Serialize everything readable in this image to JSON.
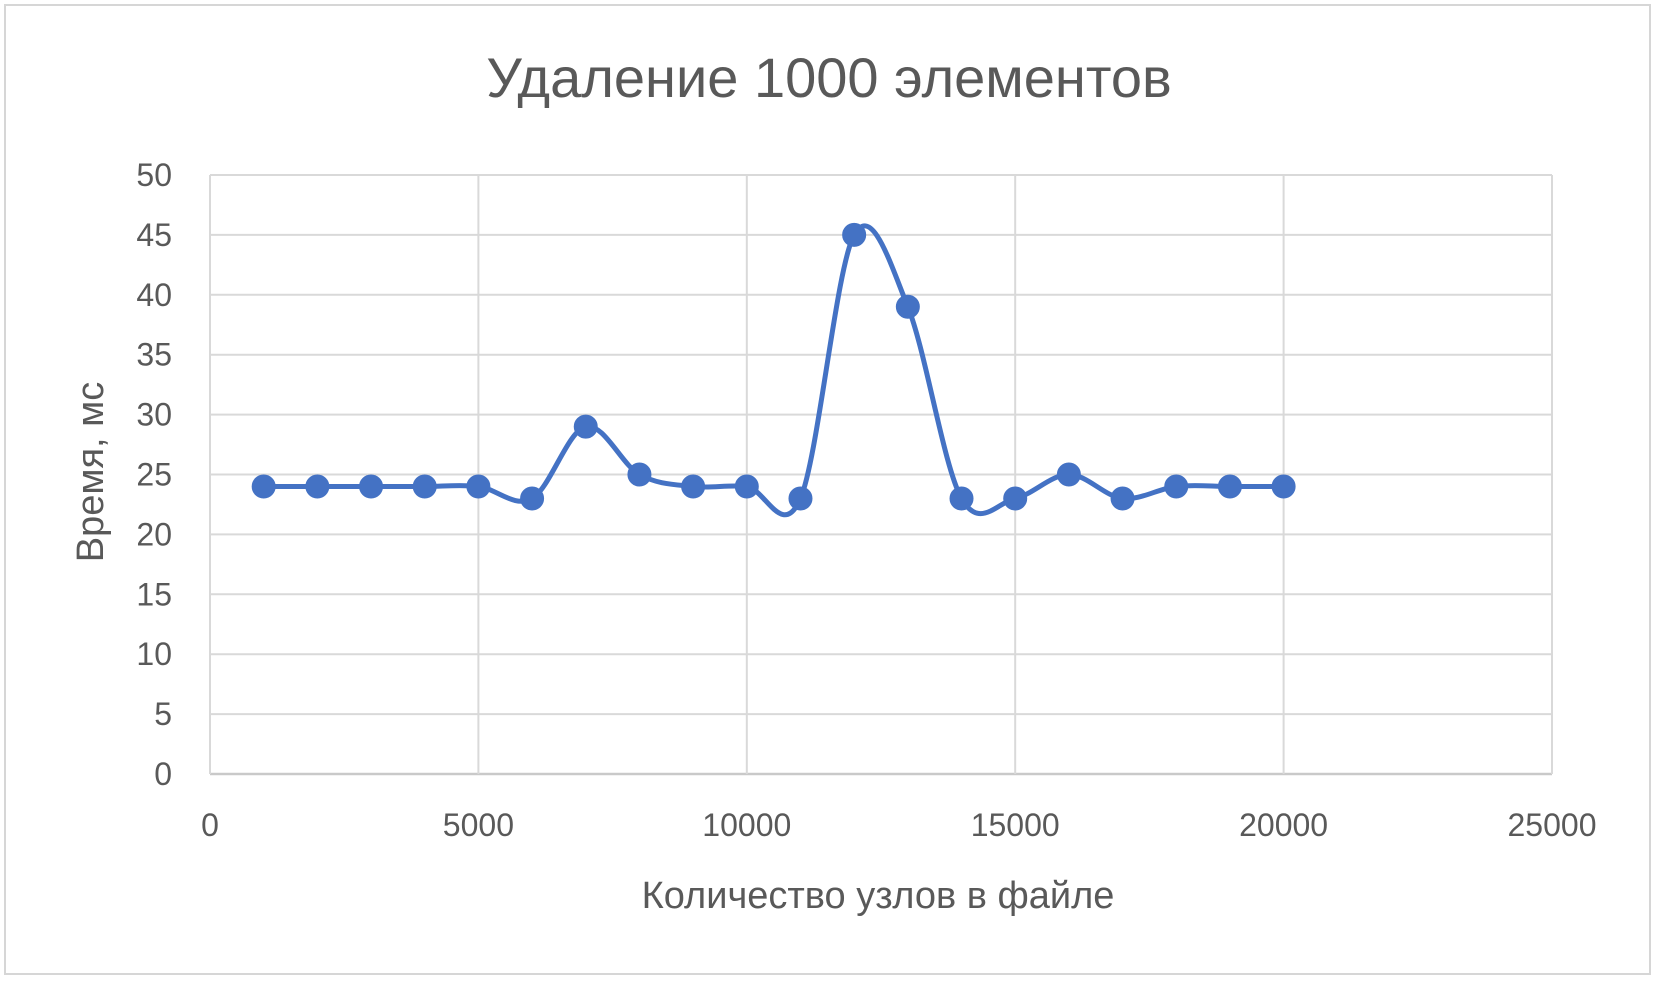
{
  "chart_data": {
    "type": "line",
    "title": "Удаление 1000 элементов",
    "xlabel": "Количество узлов в файле",
    "ylabel": "Время, мс",
    "xlim": [
      0,
      25000
    ],
    "ylim": [
      0,
      50
    ],
    "x_ticks": [
      "0",
      "5000",
      "10000",
      "15000",
      "20000",
      "25000"
    ],
    "y_ticks": [
      "0",
      "5",
      "10",
      "15",
      "20",
      "25",
      "30",
      "35",
      "40",
      "45",
      "50"
    ],
    "grid": true,
    "smooth": true,
    "markers": true,
    "legend": "none",
    "series": [
      {
        "color": "#4472C4",
        "x": [
          1000,
          2000,
          3000,
          4000,
          5000,
          6000,
          7000,
          8000,
          9000,
          10000,
          11000,
          12000,
          13000,
          14000,
          15000,
          16000,
          17000,
          18000,
          19000,
          20000
        ],
        "y": [
          24,
          24,
          24,
          24,
          24,
          23,
          29,
          25,
          24,
          24,
          23,
          45,
          39,
          23,
          23,
          25,
          23,
          24,
          24,
          24
        ]
      }
    ]
  }
}
